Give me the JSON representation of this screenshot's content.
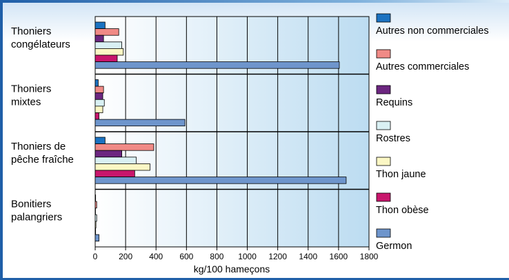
{
  "chart_data": {
    "type": "bar",
    "orientation": "horizontal",
    "xlabel": "kg/100 hameçons",
    "xlim": [
      0,
      1800
    ],
    "xticks": [
      "0",
      "200",
      "400",
      "600",
      "800",
      "1000",
      "1200",
      "1400",
      "1600",
      "1800"
    ],
    "grid": true,
    "legend_placement": "right",
    "categories": [
      {
        "line1": "Thoniers",
        "line2": "congélateurs"
      },
      {
        "line1": "Thoniers",
        "line2": "mixtes"
      },
      {
        "line1": "Thoniers de",
        "line2": "pêche fraîche"
      },
      {
        "line1": "Bonitiers",
        "line2": "palangriers"
      }
    ],
    "series": [
      {
        "name": "Autres non commerciales",
        "color": "#1b72c1",
        "values": [
          65,
          20,
          65,
          3
        ]
      },
      {
        "name": "Autres commerciales",
        "color": "#f08a86",
        "values": [
          155,
          55,
          385,
          10
        ]
      },
      {
        "name": "Requins",
        "color": "#6c2680",
        "values": [
          55,
          50,
          175,
          2
        ]
      },
      {
        "name": "Rostres",
        "color": "#d9f0f3",
        "values": [
          175,
          60,
          270,
          10
        ]
      },
      {
        "name": "Thon jaune",
        "color": "#fbf7c4",
        "values": [
          185,
          50,
          360,
          5
        ]
      },
      {
        "name": "Thon obèse",
        "color": "#c8166c",
        "values": [
          145,
          25,
          260,
          3
        ]
      },
      {
        "name": "Germon",
        "color": "#6e95cc",
        "values": [
          1605,
          590,
          1650,
          25
        ]
      }
    ]
  }
}
